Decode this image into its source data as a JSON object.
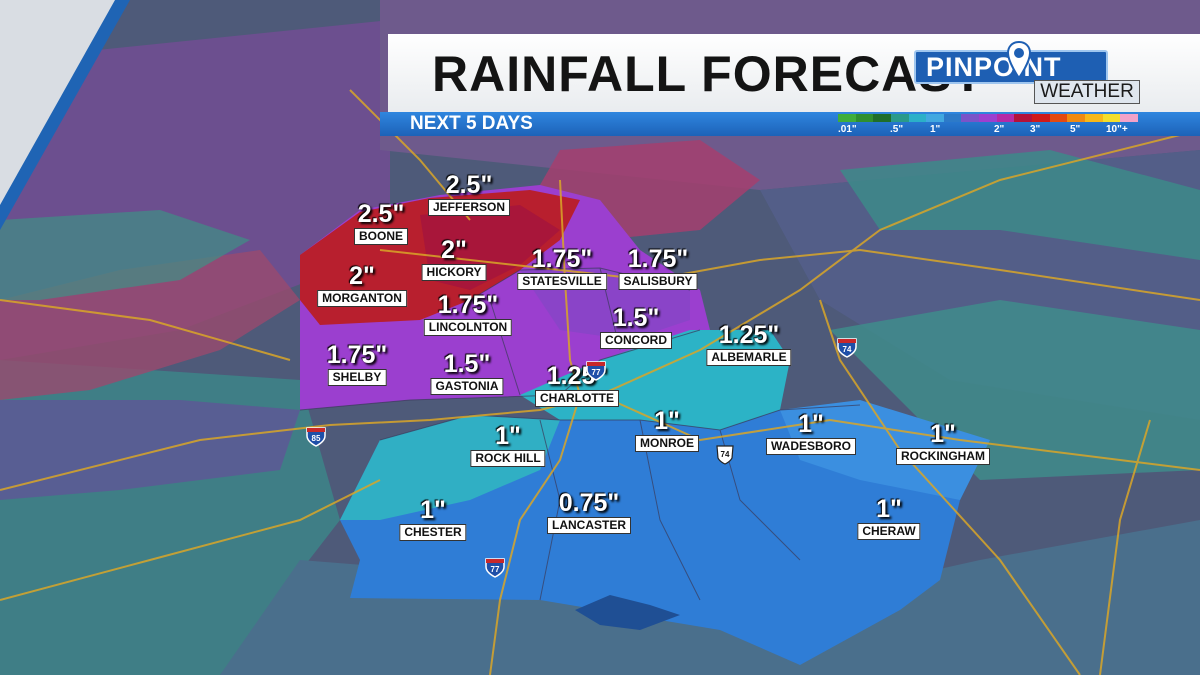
{
  "header": {
    "title": "RAINFALL FORECAST",
    "subtitle": "NEXT 5 DAYS",
    "logo_top": "PINPOINT",
    "logo_bottom": "WEATHER"
  },
  "legend": {
    "colors": [
      "#3fae3a",
      "#2f8f2f",
      "#1f6e2a",
      "#2a9a8a",
      "#2bb0c8",
      "#41a8e0",
      "#2d7ac8",
      "#7a54c8",
      "#9c3fcf",
      "#b52aa6",
      "#b3123a",
      "#cf1a1a",
      "#e34a10",
      "#f08a10",
      "#f7b818",
      "#f4de2a",
      "#f3a2c8"
    ],
    "ticks": [
      ".01\"",
      ".5\"",
      "1\"",
      "2\"",
      "3\"",
      "5\"",
      "10\"+"
    ]
  },
  "cities": [
    {
      "value": "2.5\"",
      "name": "JEFFERSON"
    },
    {
      "value": "2.5\"",
      "name": "BOONE"
    },
    {
      "value": "2\"",
      "name": "HICKORY"
    },
    {
      "value": "2\"",
      "name": "MORGANTON"
    },
    {
      "value": "1.75\"",
      "name": "STATESVILLE"
    },
    {
      "value": "1.75\"",
      "name": "SALISBURY"
    },
    {
      "value": "1.75\"",
      "name": "LINCOLNTON"
    },
    {
      "value": "1.5\"",
      "name": "CONCORD"
    },
    {
      "value": "1.25\"",
      "name": "ALBEMARLE"
    },
    {
      "value": "1.75\"",
      "name": "SHELBY"
    },
    {
      "value": "1.5\"",
      "name": "GASTONIA"
    },
    {
      "value": "1.25\"",
      "name": "CHARLOTTE"
    },
    {
      "value": "1\"",
      "name": "ROCK HILL"
    },
    {
      "value": "1\"",
      "name": "MONROE"
    },
    {
      "value": "1\"",
      "name": "WADESBORO"
    },
    {
      "value": "1\"",
      "name": "ROCKINGHAM"
    },
    {
      "value": "1\"",
      "name": "CHESTER"
    },
    {
      "value": "0.75\"",
      "name": "LANCASTER"
    },
    {
      "value": "1\"",
      "name": "CHERAW"
    }
  ],
  "highways": [
    "77",
    "74",
    "85",
    "74",
    "77"
  ]
}
